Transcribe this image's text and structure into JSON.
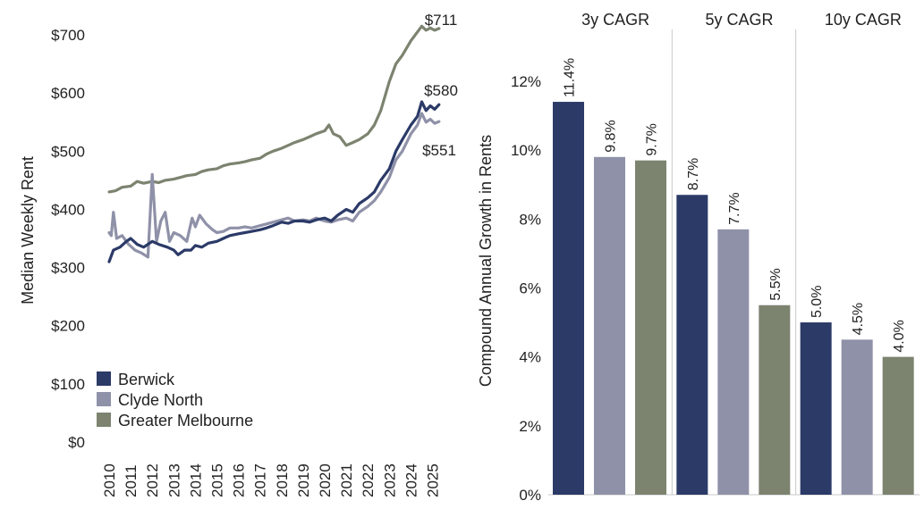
{
  "colors": {
    "berwick": "#2b3a67",
    "clyde_north": "#8f91a8",
    "greater_melbourne": "#7c836f",
    "divider": "#c8c8c8"
  },
  "chart_data": [
    {
      "type": "line",
      "title": "",
      "xlabel": "",
      "ylabel": "Median Weekly Rent",
      "xlim": [
        2010,
        2025.6
      ],
      "ylim": [
        0,
        760
      ],
      "x_ticks": [
        "2010",
        "2011",
        "2012",
        "2013",
        "2014",
        "2015",
        "2016",
        "2017",
        "2018",
        "2019",
        "2020",
        "2021",
        "2022",
        "2023",
        "2024",
        "2025"
      ],
      "y_ticks": [
        "$0",
        "$100",
        "$200",
        "$300",
        "$400",
        "$500",
        "$600",
        "$700"
      ],
      "y_tick_values": [
        0,
        100,
        200,
        300,
        400,
        500,
        600,
        700
      ],
      "legend_position": "bottom-left",
      "series": [
        {
          "name": "Berwick",
          "color_key": "berwick",
          "end_label": "$580",
          "points": [
            [
              2010.0,
              310
            ],
            [
              2010.2,
              330
            ],
            [
              2010.5,
              335
            ],
            [
              2010.8,
              345
            ],
            [
              2011.0,
              350
            ],
            [
              2011.3,
              340
            ],
            [
              2011.6,
              335
            ],
            [
              2012.0,
              345
            ],
            [
              2012.3,
              340
            ],
            [
              2012.7,
              335
            ],
            [
              2013.0,
              330
            ],
            [
              2013.2,
              322
            ],
            [
              2013.5,
              330
            ],
            [
              2013.8,
              330
            ],
            [
              2014.0,
              338
            ],
            [
              2014.3,
              335
            ],
            [
              2014.6,
              342
            ],
            [
              2015.0,
              345
            ],
            [
              2015.3,
              350
            ],
            [
              2015.6,
              355
            ],
            [
              2016.0,
              358
            ],
            [
              2016.3,
              360
            ],
            [
              2016.6,
              362
            ],
            [
              2017.0,
              365
            ],
            [
              2017.3,
              368
            ],
            [
              2017.6,
              372
            ],
            [
              2018.0,
              378
            ],
            [
              2018.3,
              376
            ],
            [
              2018.6,
              380
            ],
            [
              2019.0,
              380
            ],
            [
              2019.3,
              378
            ],
            [
              2019.6,
              382
            ],
            [
              2020.0,
              385
            ],
            [
              2020.3,
              380
            ],
            [
              2020.6,
              390
            ],
            [
              2021.0,
              400
            ],
            [
              2021.3,
              395
            ],
            [
              2021.6,
              410
            ],
            [
              2022.0,
              420
            ],
            [
              2022.3,
              430
            ],
            [
              2022.6,
              450
            ],
            [
              2023.0,
              470
            ],
            [
              2023.3,
              500
            ],
            [
              2023.6,
              520
            ],
            [
              2024.0,
              545
            ],
            [
              2024.3,
              560
            ],
            [
              2024.5,
              585
            ],
            [
              2024.7,
              570
            ],
            [
              2024.9,
              578
            ],
            [
              2025.1,
              572
            ],
            [
              2025.3,
              580
            ]
          ]
        },
        {
          "name": "Clyde North",
          "color_key": "clyde_north",
          "end_label": "$551",
          "points": [
            [
              2010.0,
              360
            ],
            [
              2010.1,
              355
            ],
            [
              2010.2,
              395
            ],
            [
              2010.35,
              350
            ],
            [
              2010.6,
              355
            ],
            [
              2010.9,
              340
            ],
            [
              2011.2,
              330
            ],
            [
              2011.5,
              325
            ],
            [
              2011.8,
              318
            ],
            [
              2012.0,
              460
            ],
            [
              2012.2,
              345
            ],
            [
              2012.4,
              380
            ],
            [
              2012.6,
              395
            ],
            [
              2012.8,
              345
            ],
            [
              2013.0,
              360
            ],
            [
              2013.3,
              355
            ],
            [
              2013.6,
              345
            ],
            [
              2013.85,
              385
            ],
            [
              2014.0,
              370
            ],
            [
              2014.2,
              390
            ],
            [
              2014.5,
              375
            ],
            [
              2014.8,
              365
            ],
            [
              2015.0,
              360
            ],
            [
              2015.3,
              362
            ],
            [
              2015.6,
              368
            ],
            [
              2016.0,
              368
            ],
            [
              2016.3,
              370
            ],
            [
              2016.6,
              368
            ],
            [
              2017.0,
              372
            ],
            [
              2017.3,
              375
            ],
            [
              2017.6,
              378
            ],
            [
              2018.0,
              382
            ],
            [
              2018.3,
              385
            ],
            [
              2018.6,
              380
            ],
            [
              2019.0,
              382
            ],
            [
              2019.3,
              380
            ],
            [
              2019.6,
              385
            ],
            [
              2020.0,
              380
            ],
            [
              2020.3,
              378
            ],
            [
              2020.6,
              382
            ],
            [
              2021.0,
              385
            ],
            [
              2021.3,
              380
            ],
            [
              2021.6,
              395
            ],
            [
              2022.0,
              405
            ],
            [
              2022.3,
              415
            ],
            [
              2022.6,
              430
            ],
            [
              2023.0,
              455
            ],
            [
              2023.3,
              485
            ],
            [
              2023.6,
              500
            ],
            [
              2024.0,
              530
            ],
            [
              2024.3,
              545
            ],
            [
              2024.5,
              565
            ],
            [
              2024.7,
              550
            ],
            [
              2024.9,
              555
            ],
            [
              2025.1,
              548
            ],
            [
              2025.3,
              551
            ]
          ]
        },
        {
          "name": "Greater Melbourne",
          "color_key": "greater_melbourne",
          "end_label": "$711",
          "points": [
            [
              2010.0,
              430
            ],
            [
              2010.3,
              432
            ],
            [
              2010.6,
              438
            ],
            [
              2011.0,
              440
            ],
            [
              2011.3,
              448
            ],
            [
              2011.6,
              445
            ],
            [
              2012.0,
              448
            ],
            [
              2012.3,
              446
            ],
            [
              2012.6,
              450
            ],
            [
              2013.0,
              452
            ],
            [
              2013.3,
              455
            ],
            [
              2013.6,
              458
            ],
            [
              2014.0,
              460
            ],
            [
              2014.3,
              465
            ],
            [
              2014.6,
              468
            ],
            [
              2015.0,
              470
            ],
            [
              2015.3,
              475
            ],
            [
              2015.6,
              478
            ],
            [
              2016.0,
              480
            ],
            [
              2016.3,
              482
            ],
            [
              2016.6,
              485
            ],
            [
              2017.0,
              488
            ],
            [
              2017.3,
              495
            ],
            [
              2017.6,
              500
            ],
            [
              2018.0,
              505
            ],
            [
              2018.3,
              510
            ],
            [
              2018.6,
              515
            ],
            [
              2019.0,
              520
            ],
            [
              2019.3,
              525
            ],
            [
              2019.6,
              530
            ],
            [
              2020.0,
              535
            ],
            [
              2020.2,
              545
            ],
            [
              2020.4,
              530
            ],
            [
              2020.7,
              525
            ],
            [
              2021.0,
              510
            ],
            [
              2021.3,
              515
            ],
            [
              2021.6,
              520
            ],
            [
              2022.0,
              530
            ],
            [
              2022.3,
              545
            ],
            [
              2022.6,
              570
            ],
            [
              2023.0,
              620
            ],
            [
              2023.3,
              650
            ],
            [
              2023.6,
              665
            ],
            [
              2024.0,
              690
            ],
            [
              2024.3,
              705
            ],
            [
              2024.5,
              715
            ],
            [
              2024.7,
              708
            ],
            [
              2024.9,
              712
            ],
            [
              2025.1,
              708
            ],
            [
              2025.3,
              711
            ]
          ]
        }
      ]
    },
    {
      "type": "bar",
      "title": "",
      "xlabel": "",
      "ylabel": "Compound Annual Growth in Rents",
      "ylim": [
        0,
        13.5
      ],
      "y_ticks": [
        "0%",
        "2%",
        "4%",
        "6%",
        "8%",
        "10%",
        "12%"
      ],
      "y_tick_values": [
        0,
        2,
        4,
        6,
        8,
        10,
        12
      ],
      "categories": [
        "3y CAGR",
        "5y CAGR",
        "10y CAGR"
      ],
      "series": [
        {
          "name": "Berwick",
          "color_key": "berwick",
          "values": [
            11.4,
            8.7,
            5.0
          ],
          "labels": [
            "11.4%",
            "8.7%",
            "5.0%"
          ]
        },
        {
          "name": "Clyde North",
          "color_key": "clyde_north",
          "values": [
            9.8,
            7.7,
            4.5
          ],
          "labels": [
            "9.8%",
            "7.7%",
            "4.5%"
          ]
        },
        {
          "name": "Greater Melbourne",
          "color_key": "greater_melbourne",
          "values": [
            9.7,
            5.5,
            4.0
          ],
          "labels": [
            "9.7%",
            "5.5%",
            "4.0%"
          ]
        }
      ]
    }
  ]
}
